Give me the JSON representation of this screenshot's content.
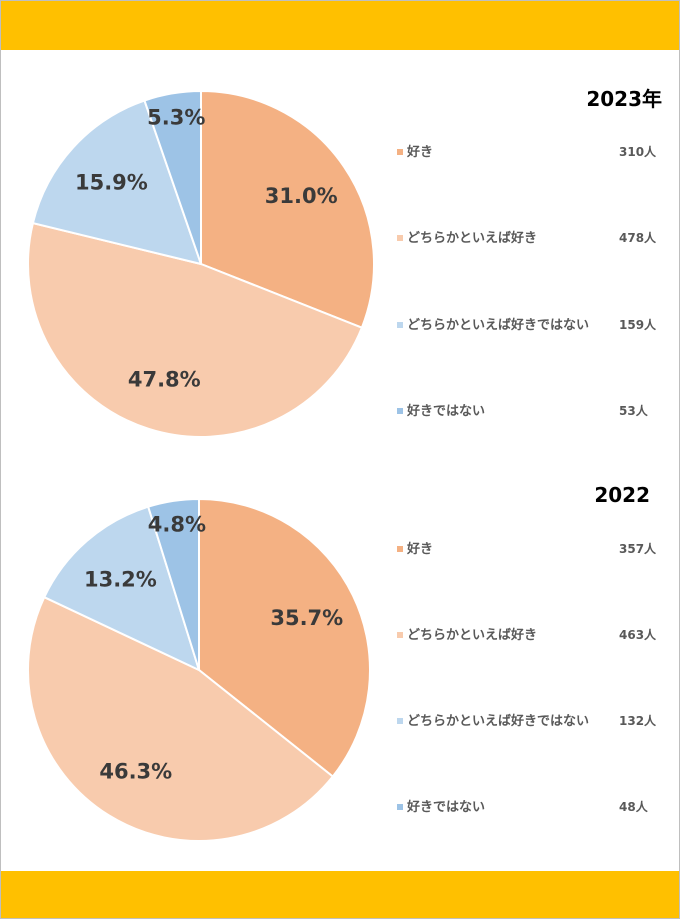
{
  "colors": {
    "banner": "#ffc000",
    "slice_like": "#f4b183",
    "slice_somewhat_like": "#f8cbad",
    "slice_somewhat_not_like": "#bdd7ee",
    "slice_not_like": "#9dc3e6"
  },
  "chart_data": [
    {
      "type": "pie",
      "title": "2023年",
      "categories": [
        "好き",
        "どちらかといえば好き",
        "どちらかといえば好きではない",
        "好きではない"
      ],
      "values": [
        31.0,
        47.8,
        15.9,
        5.3
      ],
      "value_labels": [
        "31.0%",
        "47.8%",
        "15.9%",
        "5.3%"
      ],
      "counts": [
        "310人",
        "478人",
        "159人",
        "53人"
      ],
      "colors": [
        "#f4b183",
        "#f8cbad",
        "#bdd7ee",
        "#9dc3e6"
      ],
      "legend_position": "right"
    },
    {
      "type": "pie",
      "title": "2022",
      "categories": [
        "好き",
        "どちらかといえば好き",
        "どちらかといえば好きではない",
        "好きではない"
      ],
      "values": [
        35.7,
        46.3,
        13.2,
        4.8
      ],
      "value_labels": [
        "35.7%",
        "46.3%",
        "13.2%",
        "4.8%"
      ],
      "counts": [
        "357人",
        "463人",
        "132人",
        "48人"
      ],
      "colors": [
        "#f4b183",
        "#f8cbad",
        "#bdd7ee",
        "#9dc3e6"
      ],
      "legend_position": "right"
    }
  ]
}
